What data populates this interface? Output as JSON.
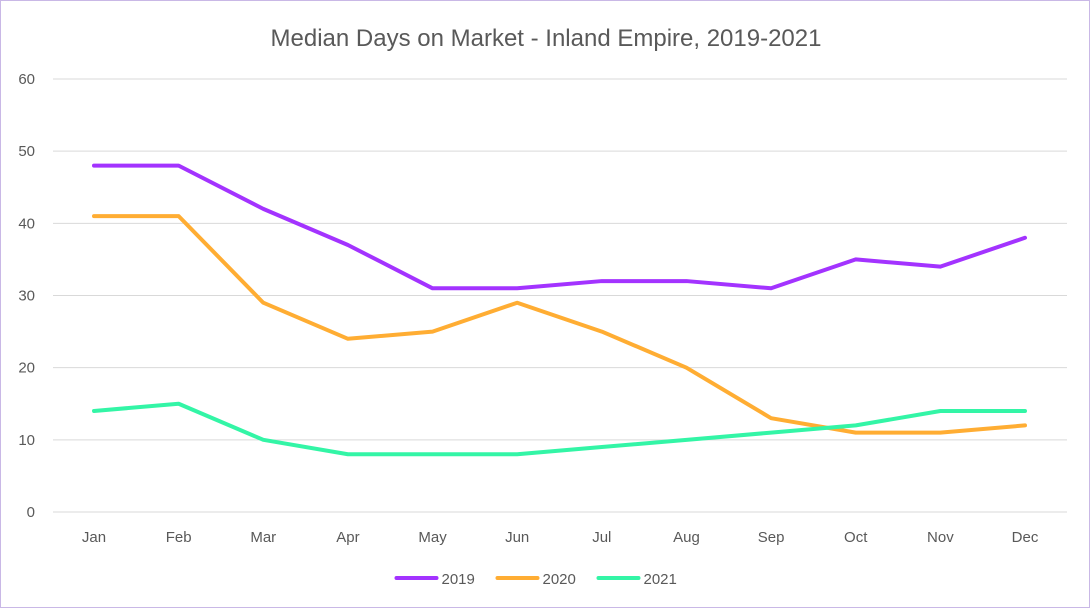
{
  "chart_data": {
    "type": "line",
    "title": "Median Days on Market - Inland Empire, 2019-2021",
    "xlabel": "",
    "ylabel": "",
    "categories": [
      "Jan",
      "Feb",
      "Mar",
      "Apr",
      "May",
      "Jun",
      "Jul",
      "Aug",
      "Sep",
      "Oct",
      "Nov",
      "Dec"
    ],
    "ylim": [
      0,
      60
    ],
    "yticks": [
      0,
      10,
      20,
      30,
      40,
      50,
      60
    ],
    "grid": true,
    "legend_position": "bottom",
    "series": [
      {
        "name": "2019",
        "color": "#a333ff",
        "values": [
          48,
          48,
          42,
          37,
          31,
          31,
          32,
          32,
          31,
          35,
          34,
          38
        ]
      },
      {
        "name": "2020",
        "color": "#ffad33",
        "values": [
          41,
          41,
          29,
          24,
          25,
          29,
          25,
          20,
          13,
          11,
          11,
          12
        ]
      },
      {
        "name": "2021",
        "color": "#33f5a6",
        "values": [
          14,
          15,
          10,
          8,
          8,
          8,
          9,
          10,
          11,
          12,
          14,
          14
        ]
      }
    ]
  }
}
